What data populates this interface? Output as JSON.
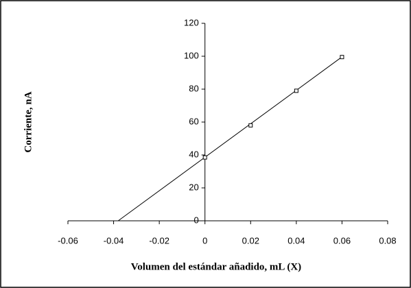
{
  "chart_data": {
    "type": "scatter",
    "x_label": "Volumen del estándar añadido, mL (X)",
    "y_label": "Corriente, nA",
    "series": [
      {
        "x": [
          0,
          0.02,
          0.04,
          0.06
        ],
        "values": [
          38.5,
          58,
          79,
          99.5
        ],
        "color": "#000000",
        "marker": "square"
      }
    ],
    "trendline": {
      "x": [
        -0.038,
        0.06
      ],
      "values": [
        0,
        99.6
      ],
      "color": "#000000"
    },
    "xlim": [
      -0.06,
      0.08
    ],
    "xticks": [
      -0.06,
      -0.04,
      -0.02,
      0,
      0.02,
      0.04,
      0.06,
      0.08
    ],
    "ylim": [
      0,
      120
    ],
    "yticks": [
      0,
      20,
      40,
      60,
      80,
      100,
      120
    ],
    "grid": false
  }
}
